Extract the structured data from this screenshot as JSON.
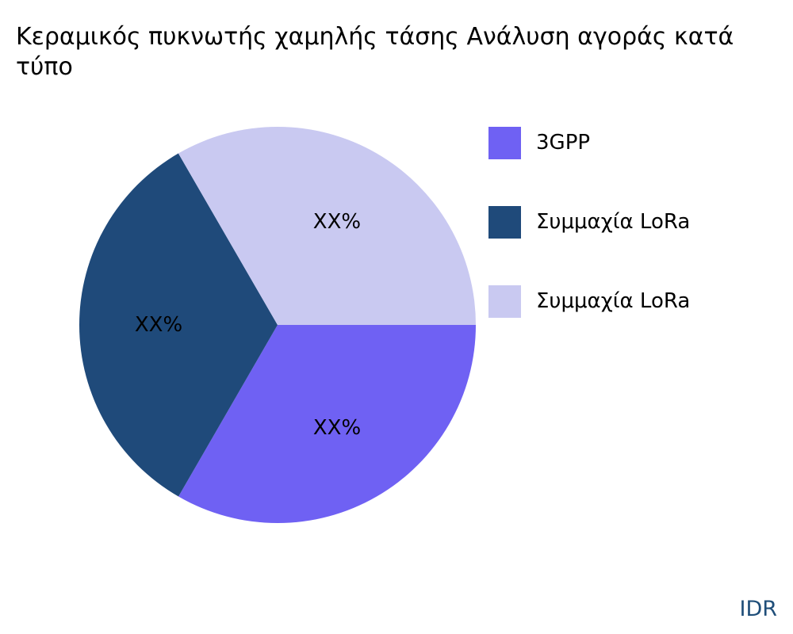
{
  "chart_data": {
    "type": "pie",
    "title": "Κεραμικός πυκνωτής χαμηλής τάσης Ανάλυση αγοράς κατά τύπο",
    "slices": [
      {
        "name": "3GPP",
        "value": 33.33,
        "label": "XX%",
        "color": "#6f61f3"
      },
      {
        "name": "Συμμαχία LoRa",
        "value": 33.33,
        "label": "XX%",
        "color": "#1f4a7a"
      },
      {
        "name": "Συμμαχία LoRa",
        "value": 33.34,
        "label": "XX%",
        "color": "#c9c9f1"
      }
    ],
    "legend_position": "right"
  },
  "watermark": "IDR"
}
